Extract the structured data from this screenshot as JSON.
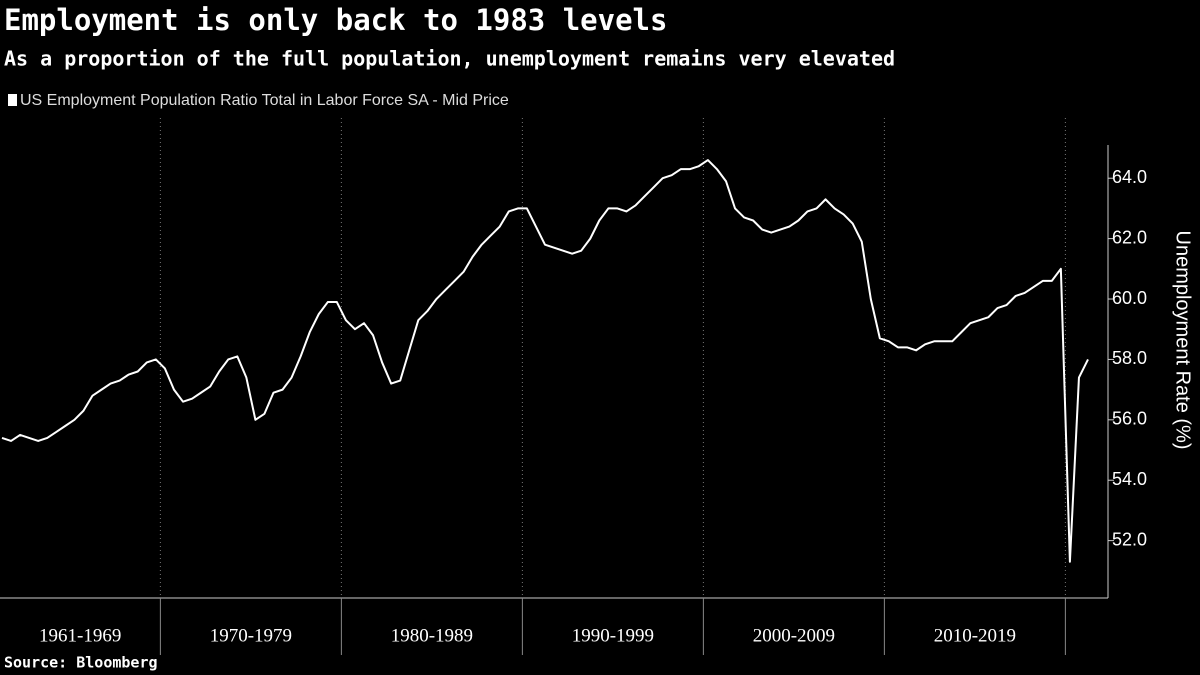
{
  "chart_data": {
    "type": "line",
    "title": "Employment is only back to 1983 levels",
    "subtitle": "As a proportion of the full population, unemployment remains very elevated",
    "source": "Source: Bloomberg",
    "y_axis_label": "Unemployment Rate (%)",
    "categories": [
      "1961-1969",
      "1961-1969",
      "1961-1969",
      "1961-1969",
      "1961-1969",
      "1961-1969",
      "1961-1969",
      "1961-1969",
      "1961-1969",
      "1961-1969",
      "1961-1969",
      "1961-1969",
      "1961-1969",
      "1961-1969",
      "1961-1969",
      "1961-1969",
      "1961-1969",
      "1961-1969",
      "1970-1979",
      "1970-1979",
      "1970-1979",
      "1970-1979",
      "1970-1979",
      "1970-1979",
      "1970-1979",
      "1970-1979",
      "1970-1979",
      "1970-1979",
      "1970-1979",
      "1970-1979",
      "1970-1979",
      "1970-1979",
      "1970-1979",
      "1970-1979",
      "1970-1979",
      "1970-1979",
      "1970-1979",
      "1970-1979",
      "1980-1989",
      "1980-1989",
      "1980-1989",
      "1980-1989",
      "1980-1989",
      "1980-1989",
      "1980-1989",
      "1980-1989",
      "1980-1989",
      "1980-1989",
      "1980-1989",
      "1980-1989",
      "1980-1989",
      "1980-1989",
      "1980-1989",
      "1980-1989",
      "1980-1989",
      "1980-1989",
      "1980-1989",
      "1980-1989",
      "1990-1999",
      "1990-1999",
      "1990-1999",
      "1990-1999",
      "1990-1999",
      "1990-1999",
      "1990-1999",
      "1990-1999",
      "1990-1999",
      "1990-1999",
      "1990-1999",
      "1990-1999",
      "1990-1999",
      "1990-1999",
      "1990-1999",
      "1990-1999",
      "1990-1999",
      "1990-1999",
      "1990-1999",
      "1990-1999",
      "2000-2009",
      "2000-2009",
      "2000-2009",
      "2000-2009",
      "2000-2009",
      "2000-2009",
      "2000-2009",
      "2000-2009",
      "2000-2009",
      "2000-2009",
      "2000-2009",
      "2000-2009",
      "2000-2009",
      "2000-2009",
      "2000-2009",
      "2000-2009",
      "2000-2009",
      "2000-2009",
      "2000-2009",
      "2000-2009",
      "2010-2019",
      "2010-2019",
      "2010-2019",
      "2010-2019",
      "2010-2019",
      "2010-2019",
      "2010-2019",
      "2010-2019",
      "2010-2019",
      "2010-2019",
      "2010-2019",
      "2010-2019",
      "2010-2019",
      "2010-2019",
      "2010-2019",
      "2010-2019",
      "2010-2019",
      "2010-2019",
      "2010-2019",
      "2010-2019",
      null,
      null,
      null
    ],
    "series": [
      {
        "name": "US Employment Population Ratio Total in Labor Force SA - Mid Price",
        "color": "#ffffff",
        "values": [
          55.4,
          55.3,
          55.5,
          55.4,
          55.3,
          55.4,
          55.6,
          55.8,
          56.0,
          56.3,
          56.8,
          57.0,
          57.2,
          57.3,
          57.5,
          57.6,
          57.9,
          58.0,
          57.7,
          57.0,
          56.6,
          56.7,
          56.9,
          57.1,
          57.6,
          58.0,
          58.1,
          57.4,
          56.0,
          56.2,
          56.9,
          57.0,
          57.4,
          58.1,
          58.9,
          59.5,
          59.9,
          59.9,
          59.3,
          59.0,
          59.2,
          58.8,
          57.9,
          57.2,
          57.3,
          58.3,
          59.3,
          59.6,
          60.0,
          60.3,
          60.6,
          60.9,
          61.4,
          61.8,
          62.1,
          62.4,
          62.9,
          63.0,
          63.0,
          62.4,
          61.8,
          61.7,
          61.6,
          61.5,
          61.6,
          62.0,
          62.6,
          63.0,
          63.0,
          62.9,
          63.1,
          63.4,
          63.7,
          64.0,
          64.1,
          64.3,
          64.3,
          64.4,
          64.6,
          64.3,
          63.9,
          63.0,
          62.7,
          62.6,
          62.3,
          62.2,
          62.3,
          62.4,
          62.6,
          62.9,
          63.0,
          63.3,
          63.0,
          62.8,
          62.5,
          61.9,
          60.0,
          58.7,
          58.6,
          58.4,
          58.4,
          58.3,
          58.5,
          58.6,
          58.6,
          58.6,
          58.9,
          59.2,
          59.3,
          59.4,
          59.7,
          59.8,
          60.1,
          60.2,
          60.4,
          60.6,
          60.6,
          61.0,
          51.3,
          57.4,
          58.0
        ]
      }
    ],
    "ylim": [
      50.1,
      65.1
    ],
    "yticks": [
      {
        "value": 52,
        "label": "52.0"
      },
      {
        "value": 54,
        "label": "54.0"
      },
      {
        "value": 56,
        "label": "56.0"
      },
      {
        "value": 58,
        "label": "58.0"
      },
      {
        "value": 60,
        "label": "60.0"
      },
      {
        "value": 62,
        "label": "62.0"
      },
      {
        "value": 64,
        "label": "64.0"
      }
    ],
    "y_axis_side": "right",
    "grid": false,
    "legend": "top-left"
  }
}
